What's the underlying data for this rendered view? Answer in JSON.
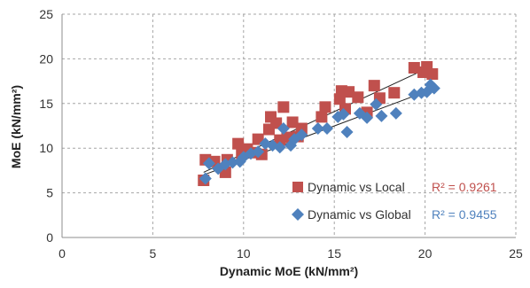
{
  "chart_data": {
    "type": "scatter",
    "xlabel": "Dynamic MoE (kN/mm²)",
    "ylabel": "MoE (kN/mm²)",
    "xlim": [
      0,
      25
    ],
    "ylim": [
      0,
      25
    ],
    "x_ticks": [
      0,
      5,
      10,
      15,
      20,
      25
    ],
    "y_ticks": [
      0,
      5,
      10,
      15,
      20,
      25
    ],
    "grid": "dashed",
    "legend": "bottom-right",
    "series": [
      {
        "name": "Dynamic vs Local",
        "marker": "square",
        "color": "#C0504D",
        "r2_label": "R² = 0.9261",
        "trendline": {
          "x": [
            7.8,
            20.4
          ],
          "y": [
            7.3,
            19.2
          ]
        },
        "points": [
          [
            7.8,
            6.4
          ],
          [
            7.9,
            8.7
          ],
          [
            8.4,
            8.5
          ],
          [
            9.0,
            7.3
          ],
          [
            9.1,
            8.7
          ],
          [
            9.7,
            10.5
          ],
          [
            9.9,
            9.4
          ],
          [
            10.2,
            9.9
          ],
          [
            10.5,
            9.5
          ],
          [
            10.8,
            11.0
          ],
          [
            11.0,
            9.3
          ],
          [
            11.4,
            12.1
          ],
          [
            11.5,
            13.5
          ],
          [
            11.8,
            12.8
          ],
          [
            12.0,
            10.9
          ],
          [
            12.2,
            14.6
          ],
          [
            12.4,
            11.2
          ],
          [
            12.7,
            12.9
          ],
          [
            13.0,
            11.3
          ],
          [
            13.2,
            12.2
          ],
          [
            14.3,
            13.5
          ],
          [
            14.5,
            14.6
          ],
          [
            15.3,
            15.5
          ],
          [
            15.4,
            16.4
          ],
          [
            15.6,
            14.4
          ],
          [
            15.8,
            16.3
          ],
          [
            16.3,
            15.7
          ],
          [
            16.8,
            14.0
          ],
          [
            17.2,
            17.0
          ],
          [
            17.5,
            15.6
          ],
          [
            18.3,
            16.2
          ],
          [
            19.4,
            19.0
          ],
          [
            19.9,
            18.5
          ],
          [
            20.1,
            19.1
          ],
          [
            20.4,
            18.3
          ]
        ]
      },
      {
        "name": "Dynamic vs Global",
        "marker": "diamond",
        "color": "#4F81BD",
        "r2_label": "R² = 0.9455",
        "trendline": {
          "x": [
            7.8,
            20.4
          ],
          "y": [
            7.0,
            16.6
          ]
        },
        "points": [
          [
            7.9,
            6.6
          ],
          [
            8.1,
            8.3
          ],
          [
            8.6,
            7.7
          ],
          [
            9.0,
            8.2
          ],
          [
            9.4,
            8.4
          ],
          [
            9.8,
            8.5
          ],
          [
            10.0,
            9.0
          ],
          [
            10.4,
            9.4
          ],
          [
            10.8,
            9.6
          ],
          [
            11.2,
            10.5
          ],
          [
            11.6,
            10.3
          ],
          [
            12.0,
            10.1
          ],
          [
            12.2,
            12.2
          ],
          [
            12.6,
            10.3
          ],
          [
            12.8,
            11.0
          ],
          [
            13.2,
            11.5
          ],
          [
            14.1,
            12.2
          ],
          [
            14.6,
            12.2
          ],
          [
            15.2,
            13.5
          ],
          [
            15.5,
            13.8
          ],
          [
            15.7,
            11.8
          ],
          [
            16.4,
            13.9
          ],
          [
            16.8,
            13.4
          ],
          [
            17.3,
            14.9
          ],
          [
            17.6,
            13.6
          ],
          [
            18.4,
            13.9
          ],
          [
            19.4,
            16.0
          ],
          [
            19.8,
            16.2
          ],
          [
            20.1,
            16.3
          ],
          [
            20.3,
            17.1
          ],
          [
            20.5,
            16.7
          ]
        ]
      }
    ]
  }
}
